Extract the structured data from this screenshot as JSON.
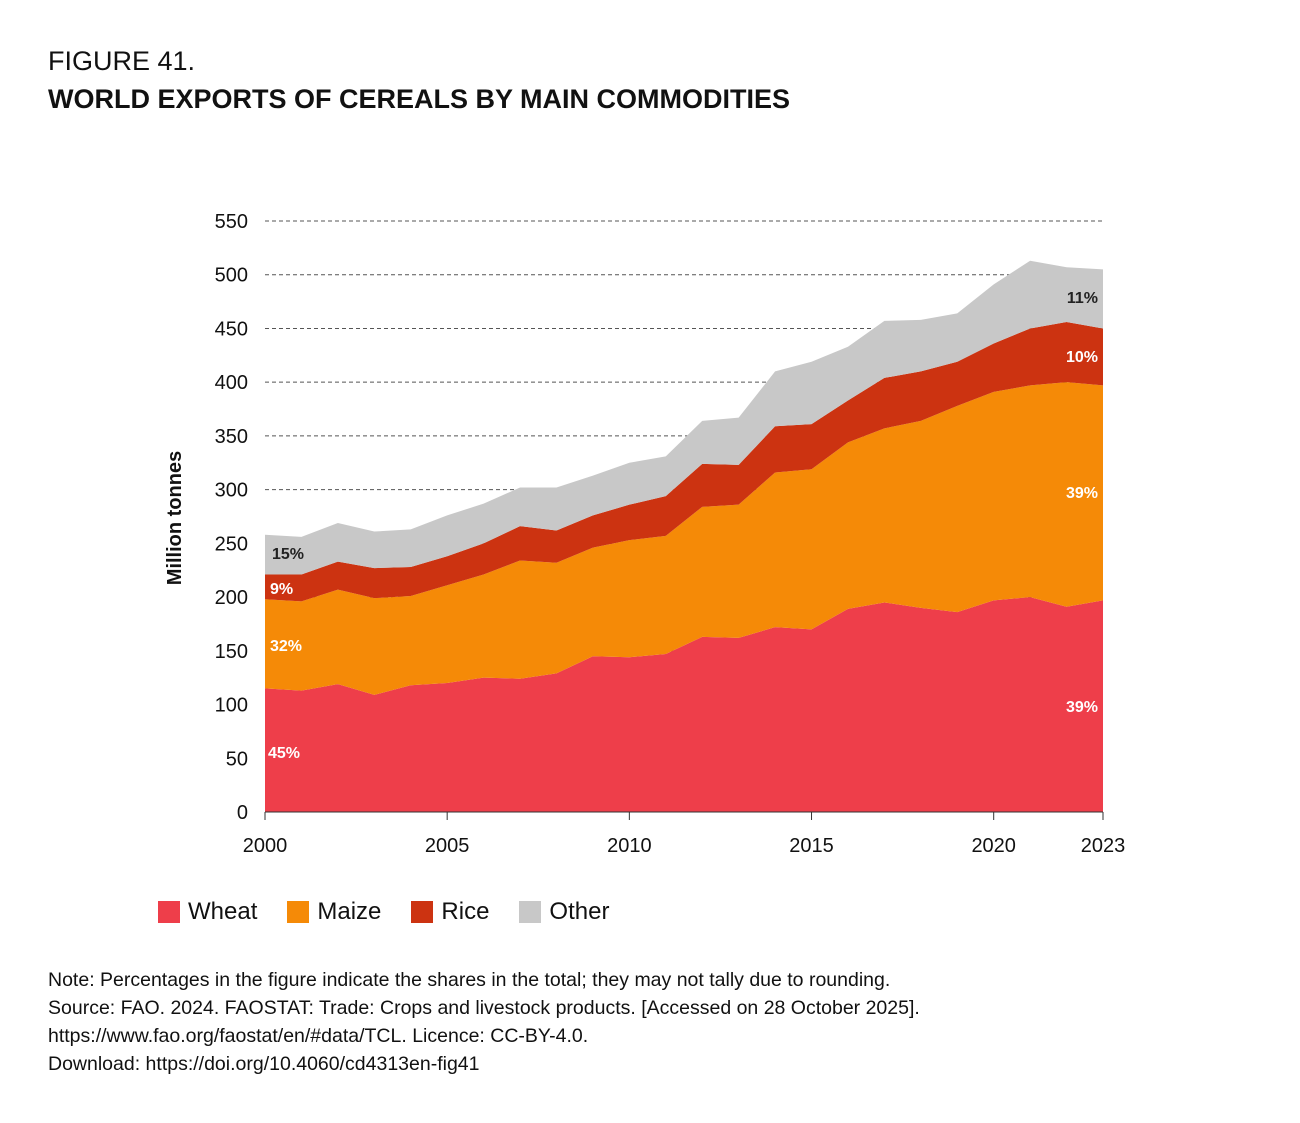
{
  "figure_number": "FIGURE 41.",
  "chart_data": {
    "type": "area",
    "stacked": true,
    "title": "WORLD EXPORTS OF CEREALS BY MAIN COMMODITIES",
    "xlabel": "",
    "ylabel": "Million tonnes",
    "ylim": [
      0,
      550
    ],
    "yticks": [
      0,
      50,
      100,
      150,
      200,
      250,
      300,
      350,
      400,
      450,
      500,
      550
    ],
    "xtick_labels": [
      "2000",
      "2005",
      "2010",
      "2015",
      "2020",
      "2023"
    ],
    "xticks": [
      2000,
      2005,
      2010,
      2015,
      2020,
      2023
    ],
    "grid": "horizontal dashed",
    "legend_position": "bottom-left",
    "x": [
      2000,
      2001,
      2002,
      2003,
      2004,
      2005,
      2006,
      2007,
      2008,
      2009,
      2010,
      2011,
      2012,
      2013,
      2014,
      2015,
      2016,
      2017,
      2018,
      2019,
      2020,
      2021,
      2022,
      2023
    ],
    "series": [
      {
        "name": "Wheat",
        "color": "#ee3e4a",
        "values": [
          115,
          113,
          119,
          109,
          118,
          120,
          125,
          124,
          129,
          145,
          144,
          147,
          163,
          162,
          172,
          170,
          189,
          195,
          190,
          186,
          197,
          200,
          191,
          197
        ]
      },
      {
        "name": "Maize",
        "color": "#f58a07",
        "values": [
          83,
          83,
          88,
          90,
          83,
          91,
          96,
          110,
          103,
          101,
          109,
          110,
          121,
          124,
          144,
          149,
          155,
          162,
          174,
          192,
          194,
          197,
          209,
          200
        ]
      },
      {
        "name": "Rice",
        "color": "#cc3311",
        "values": [
          23,
          25,
          26,
          28,
          27,
          27,
          29,
          32,
          30,
          30,
          33,
          37,
          40,
          37,
          43,
          42,
          39,
          47,
          46,
          41,
          45,
          53,
          56,
          53
        ]
      },
      {
        "name": "Other",
        "color": "#c8c8c8",
        "values": [
          37,
          35,
          36,
          34,
          35,
          38,
          37,
          36,
          40,
          37,
          39,
          37,
          40,
          44,
          51,
          58,
          50,
          53,
          48,
          45,
          55,
          63,
          51,
          55
        ]
      }
    ],
    "annotations": {
      "start": {
        "Other": "15%",
        "Rice": "9%",
        "Maize": "32%",
        "Wheat": "45%"
      },
      "end": {
        "Other": "11%",
        "Rice": "10%",
        "Maize": "39%",
        "Wheat": "39%"
      }
    }
  },
  "notes": [
    "Note: Percentages in the figure indicate the shares in the total; they may not tally due to rounding.",
    "Source: FAO. 2024. FAOSTAT: Trade: Crops and livestock products. [Accessed on 28 October 2025].",
    "https://www.fao.org/faostat/en/#data/TCL. Licence: CC-BY-4.0.",
    "Download: https://doi.org/10.4060/cd4313en-fig41"
  ]
}
